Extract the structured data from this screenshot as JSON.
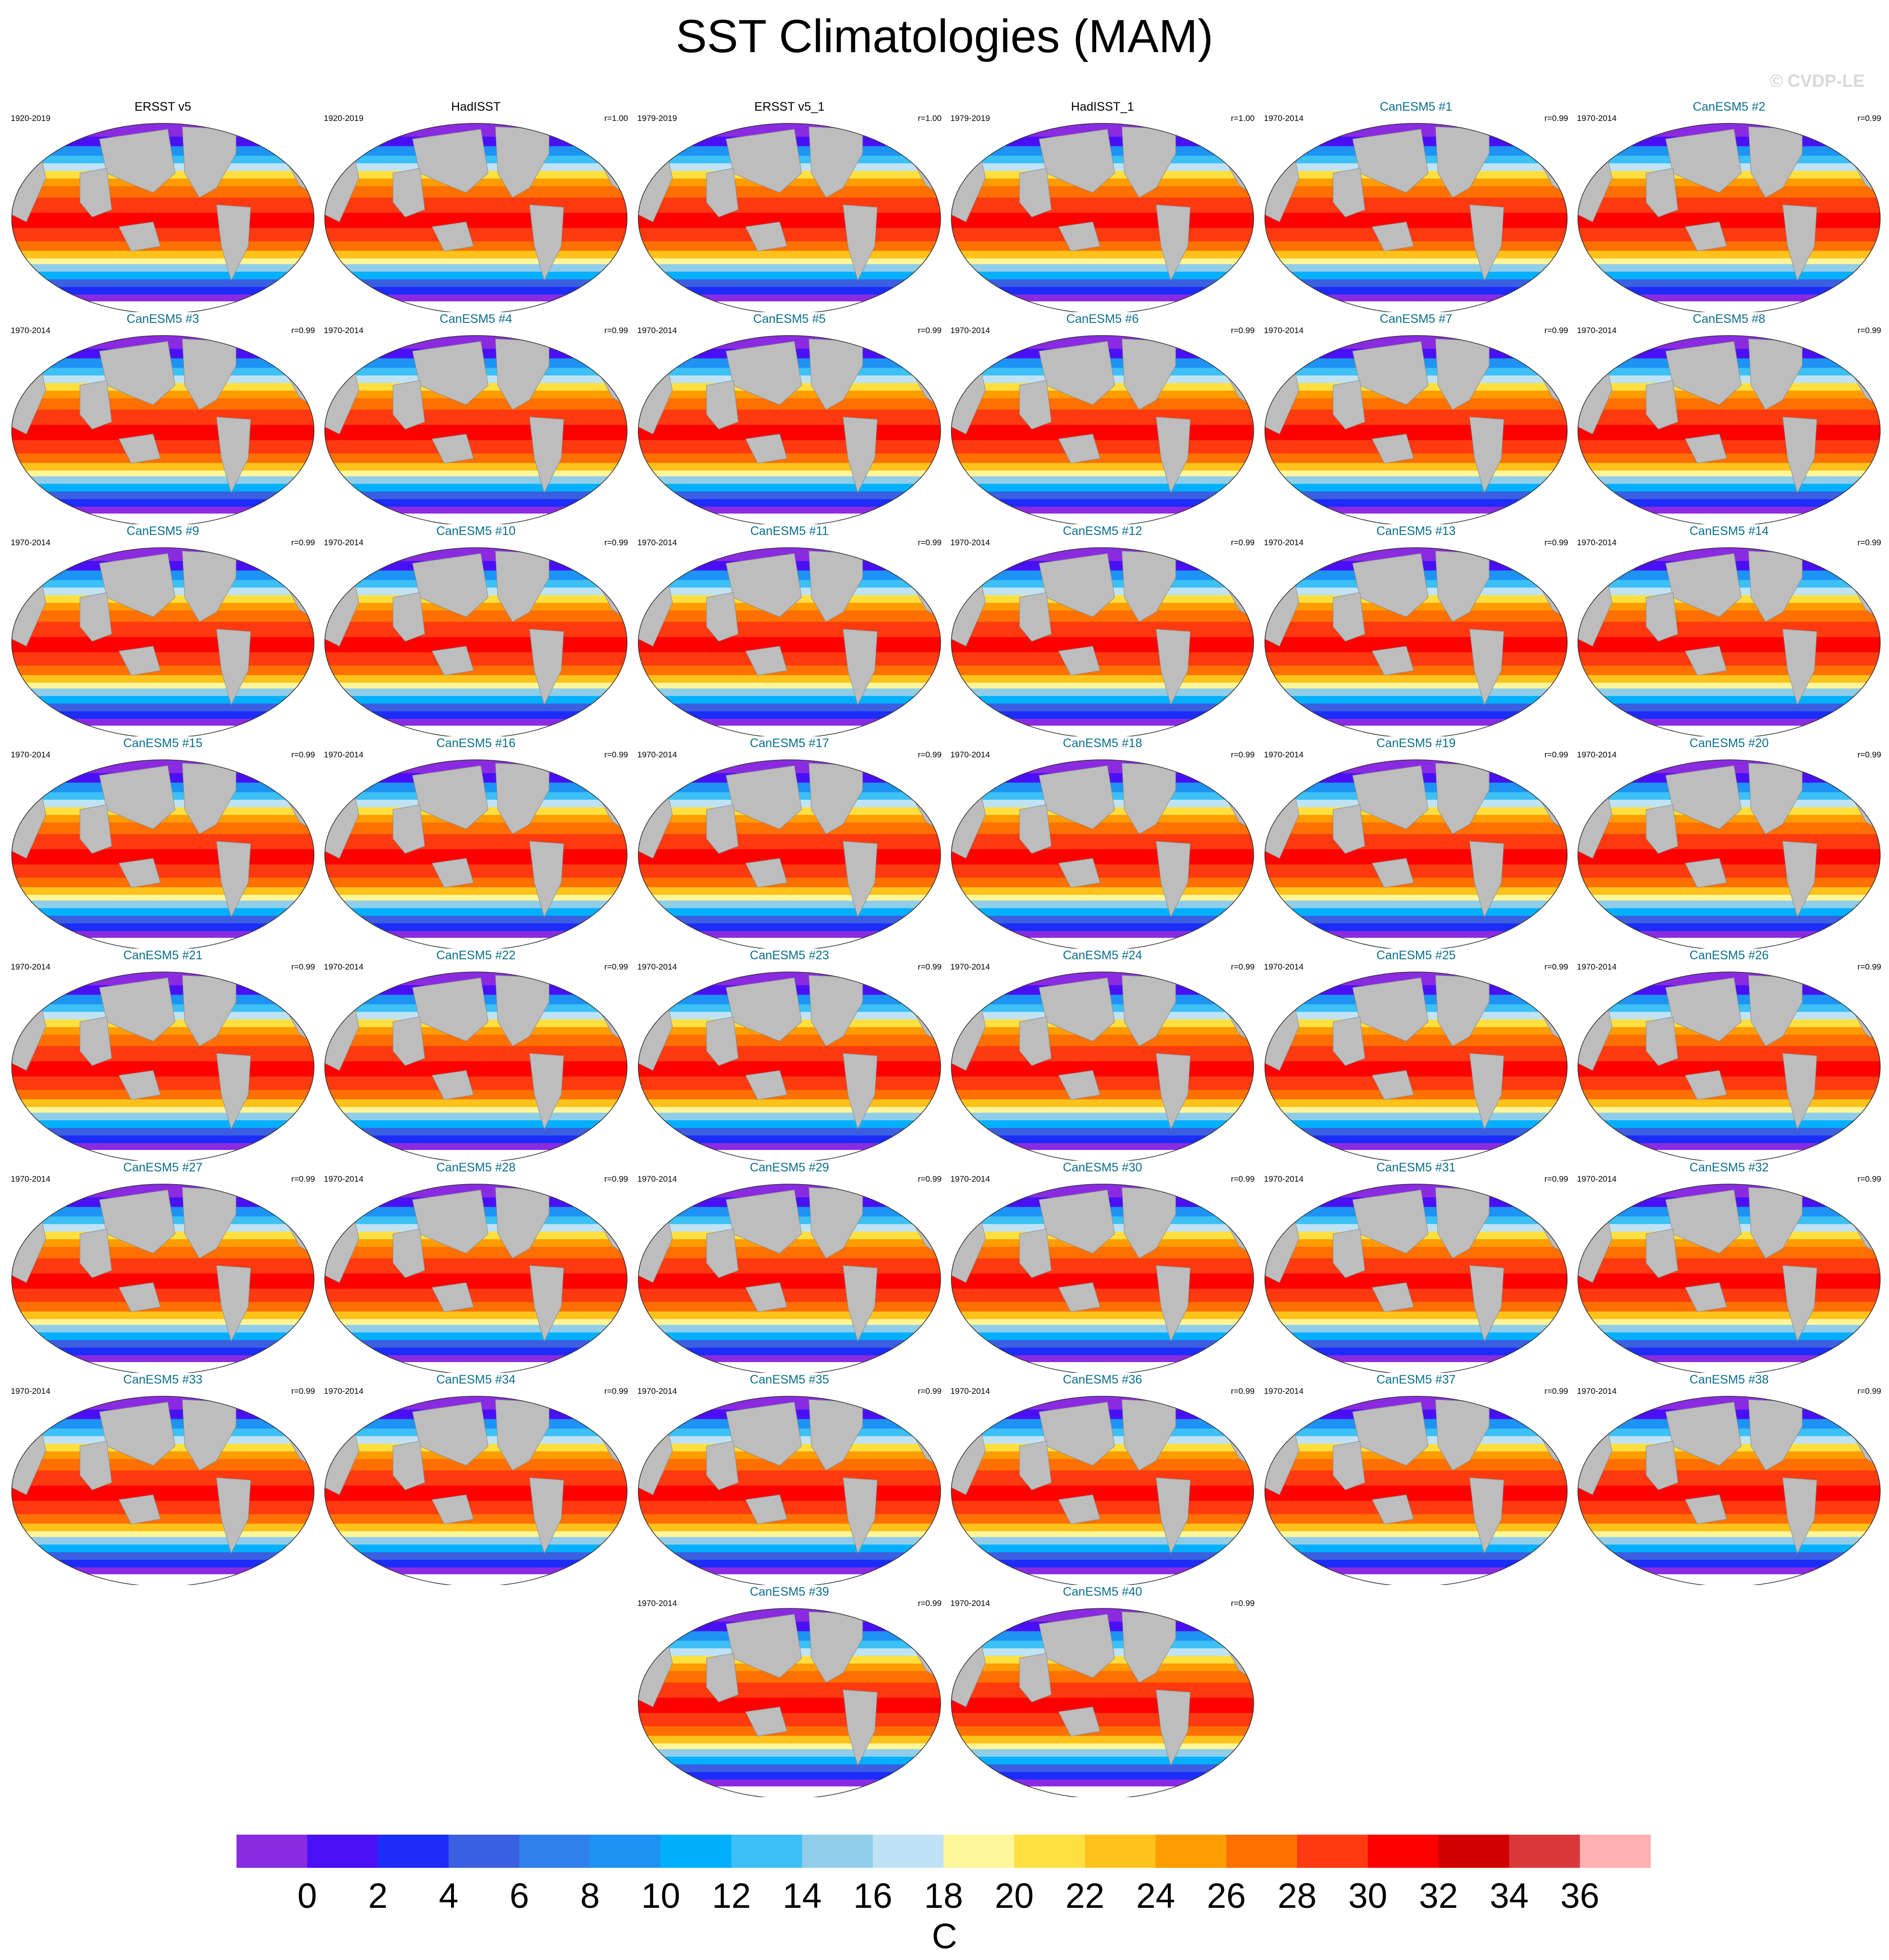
{
  "title": "SST Climatologies (MAM)",
  "watermark": "© CVDP-LE",
  "colorbar": {
    "tick_labels": [
      "0",
      "2",
      "4",
      "6",
      "8",
      "10",
      "12",
      "14",
      "16",
      "18",
      "20",
      "22",
      "24",
      "26",
      "28",
      "30",
      "32",
      "34",
      "36"
    ],
    "unit": "C",
    "colors": [
      "#8a2be2",
      "#4a10f5",
      "#1c2dfa",
      "#3a5fe0",
      "#2f80ee",
      "#1d93f5",
      "#00b0ff",
      "#3cc0f5",
      "#90cde8",
      "#bfe3f5",
      "#fff69a",
      "#ffe040",
      "#ffc21a",
      "#ff9c00",
      "#ff7000",
      "#ff3a10",
      "#ff0000",
      "#d10000",
      "#d9383a",
      "#ffb0b0"
    ]
  },
  "panels": [
    {
      "label": "ERSST v5",
      "period": "1920-2019",
      "corr": "",
      "kind": "obs"
    },
    {
      "label": "HadISST",
      "period": "1920-2019",
      "corr": "r=1.00",
      "kind": "obs"
    },
    {
      "label": "ERSST v5_1",
      "period": "1979-2019",
      "corr": "r=1.00",
      "kind": "obs"
    },
    {
      "label": "HadISST_1",
      "period": "1979-2019",
      "corr": "r=1.00",
      "kind": "obs"
    },
    {
      "label": "CanESM5 #1",
      "period": "1970-2014",
      "corr": "r=0.99",
      "kind": "model"
    },
    {
      "label": "CanESM5 #2",
      "period": "1970-2014",
      "corr": "r=0.99",
      "kind": "model"
    },
    {
      "label": "CanESM5 #3",
      "period": "1970-2014",
      "corr": "r=0.99",
      "kind": "model"
    },
    {
      "label": "CanESM5 #4",
      "period": "1970-2014",
      "corr": "r=0.99",
      "kind": "model"
    },
    {
      "label": "CanESM5 #5",
      "period": "1970-2014",
      "corr": "r=0.99",
      "kind": "model"
    },
    {
      "label": "CanESM5 #6",
      "period": "1970-2014",
      "corr": "r=0.99",
      "kind": "model"
    },
    {
      "label": "CanESM5 #7",
      "period": "1970-2014",
      "corr": "r=0.99",
      "kind": "model"
    },
    {
      "label": "CanESM5 #8",
      "period": "1970-2014",
      "corr": "r=0.99",
      "kind": "model"
    },
    {
      "label": "CanESM5 #9",
      "period": "1970-2014",
      "corr": "r=0.99",
      "kind": "model"
    },
    {
      "label": "CanESM5 #10",
      "period": "1970-2014",
      "corr": "r=0.99",
      "kind": "model"
    },
    {
      "label": "CanESM5 #11",
      "period": "1970-2014",
      "corr": "r=0.99",
      "kind": "model"
    },
    {
      "label": "CanESM5 #12",
      "period": "1970-2014",
      "corr": "r=0.99",
      "kind": "model"
    },
    {
      "label": "CanESM5 #13",
      "period": "1970-2014",
      "corr": "r=0.99",
      "kind": "model"
    },
    {
      "label": "CanESM5 #14",
      "period": "1970-2014",
      "corr": "r=0.99",
      "kind": "model"
    },
    {
      "label": "CanESM5 #15",
      "period": "1970-2014",
      "corr": "r=0.99",
      "kind": "model"
    },
    {
      "label": "CanESM5 #16",
      "period": "1970-2014",
      "corr": "r=0.99",
      "kind": "model"
    },
    {
      "label": "CanESM5 #17",
      "period": "1970-2014",
      "corr": "r=0.99",
      "kind": "model"
    },
    {
      "label": "CanESM5 #18",
      "period": "1970-2014",
      "corr": "r=0.99",
      "kind": "model"
    },
    {
      "label": "CanESM5 #19",
      "period": "1970-2014",
      "corr": "r=0.99",
      "kind": "model"
    },
    {
      "label": "CanESM5 #20",
      "period": "1970-2014",
      "corr": "r=0.99",
      "kind": "model"
    },
    {
      "label": "CanESM5 #21",
      "period": "1970-2014",
      "corr": "r=0.99",
      "kind": "model"
    },
    {
      "label": "CanESM5 #22",
      "period": "1970-2014",
      "corr": "r=0.99",
      "kind": "model"
    },
    {
      "label": "CanESM5 #23",
      "period": "1970-2014",
      "corr": "r=0.99",
      "kind": "model"
    },
    {
      "label": "CanESM5 #24",
      "period": "1970-2014",
      "corr": "r=0.99",
      "kind": "model"
    },
    {
      "label": "CanESM5 #25",
      "period": "1970-2014",
      "corr": "r=0.99",
      "kind": "model"
    },
    {
      "label": "CanESM5 #26",
      "period": "1970-2014",
      "corr": "r=0.99",
      "kind": "model"
    },
    {
      "label": "CanESM5 #27",
      "period": "1970-2014",
      "corr": "r=0.99",
      "kind": "model"
    },
    {
      "label": "CanESM5 #28",
      "period": "1970-2014",
      "corr": "r=0.99",
      "kind": "model"
    },
    {
      "label": "CanESM5 #29",
      "period": "1970-2014",
      "corr": "r=0.99",
      "kind": "model"
    },
    {
      "label": "CanESM5 #30",
      "period": "1970-2014",
      "corr": "r=0.99",
      "kind": "model"
    },
    {
      "label": "CanESM5 #31",
      "period": "1970-2014",
      "corr": "r=0.99",
      "kind": "model"
    },
    {
      "label": "CanESM5 #32",
      "period": "1970-2014",
      "corr": "r=0.99",
      "kind": "model"
    },
    {
      "label": "CanESM5 #33",
      "period": "1970-2014",
      "corr": "r=0.99",
      "kind": "model"
    },
    {
      "label": "CanESM5 #34",
      "period": "1970-2014",
      "corr": "r=0.99",
      "kind": "model"
    },
    {
      "label": "CanESM5 #35",
      "period": "1970-2014",
      "corr": "r=0.99",
      "kind": "model"
    },
    {
      "label": "CanESM5 #36",
      "period": "1970-2014",
      "corr": "r=0.99",
      "kind": "model"
    },
    {
      "label": "CanESM5 #37",
      "period": "1970-2014",
      "corr": "r=0.99",
      "kind": "model"
    },
    {
      "label": "CanESM5 #38",
      "period": "1970-2014",
      "corr": "r=0.99",
      "kind": "model"
    },
    {
      "label": "CanESM5 #39",
      "period": "1970-2014",
      "corr": "r=0.99",
      "kind": "model"
    },
    {
      "label": "CanESM5 #40",
      "period": "1970-2014",
      "corr": "r=0.99",
      "kind": "model"
    }
  ]
}
